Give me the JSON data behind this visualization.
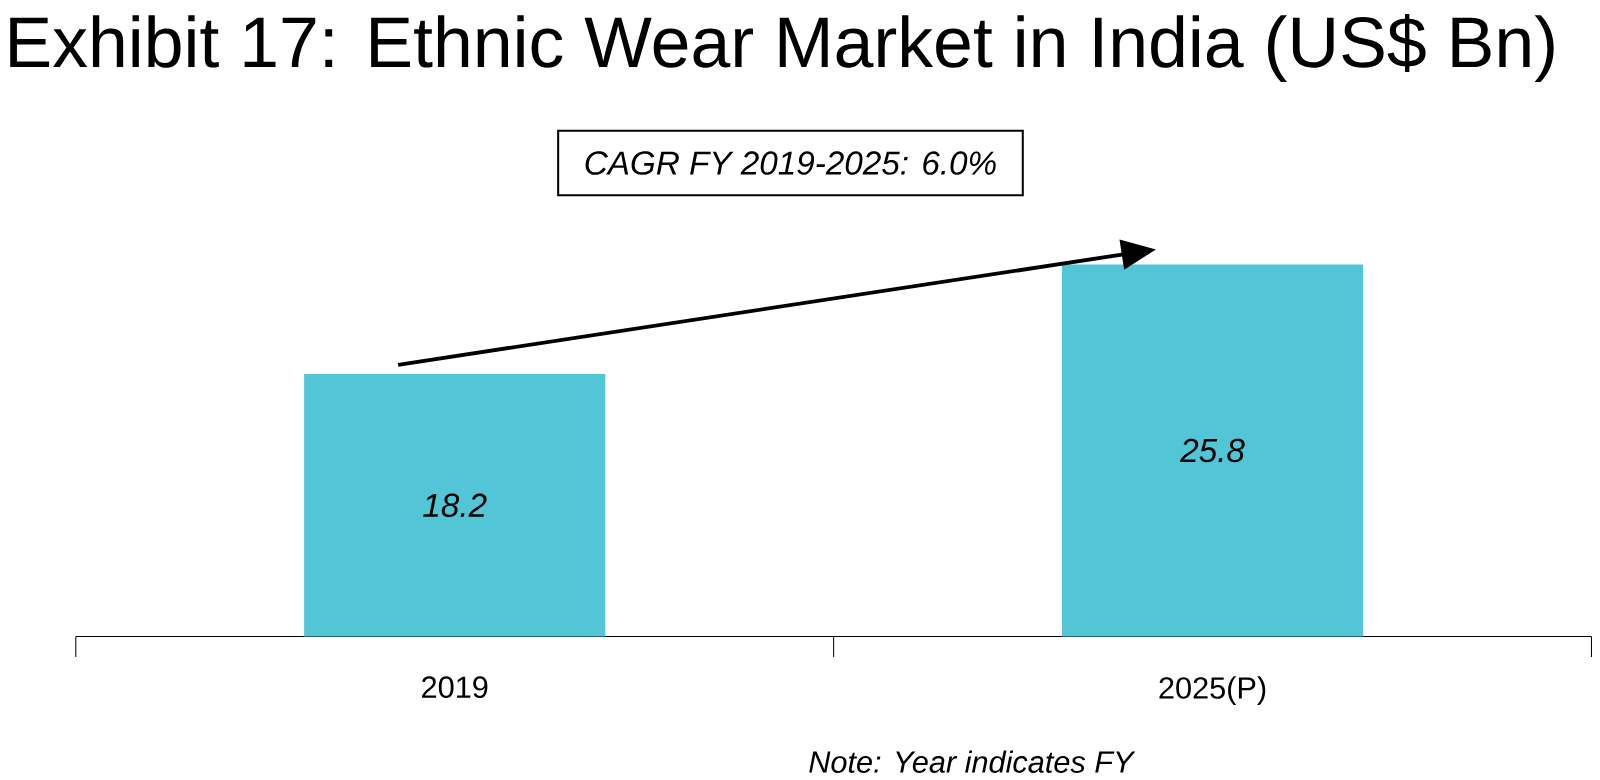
{
  "chart_data": {
    "type": "bar",
    "title": "Exhibit 17: Ethnic Wear Market in India (US$ Bn)",
    "categories": [
      "2019",
      "2025(P)"
    ],
    "values": [
      18.2,
      25.8
    ],
    "color": "#52c5d6",
    "data_labels": true,
    "annotations": [
      "CAGR FY 2019-2025: 6.0%",
      "Note: Year indicates FY"
    ]
  }
}
